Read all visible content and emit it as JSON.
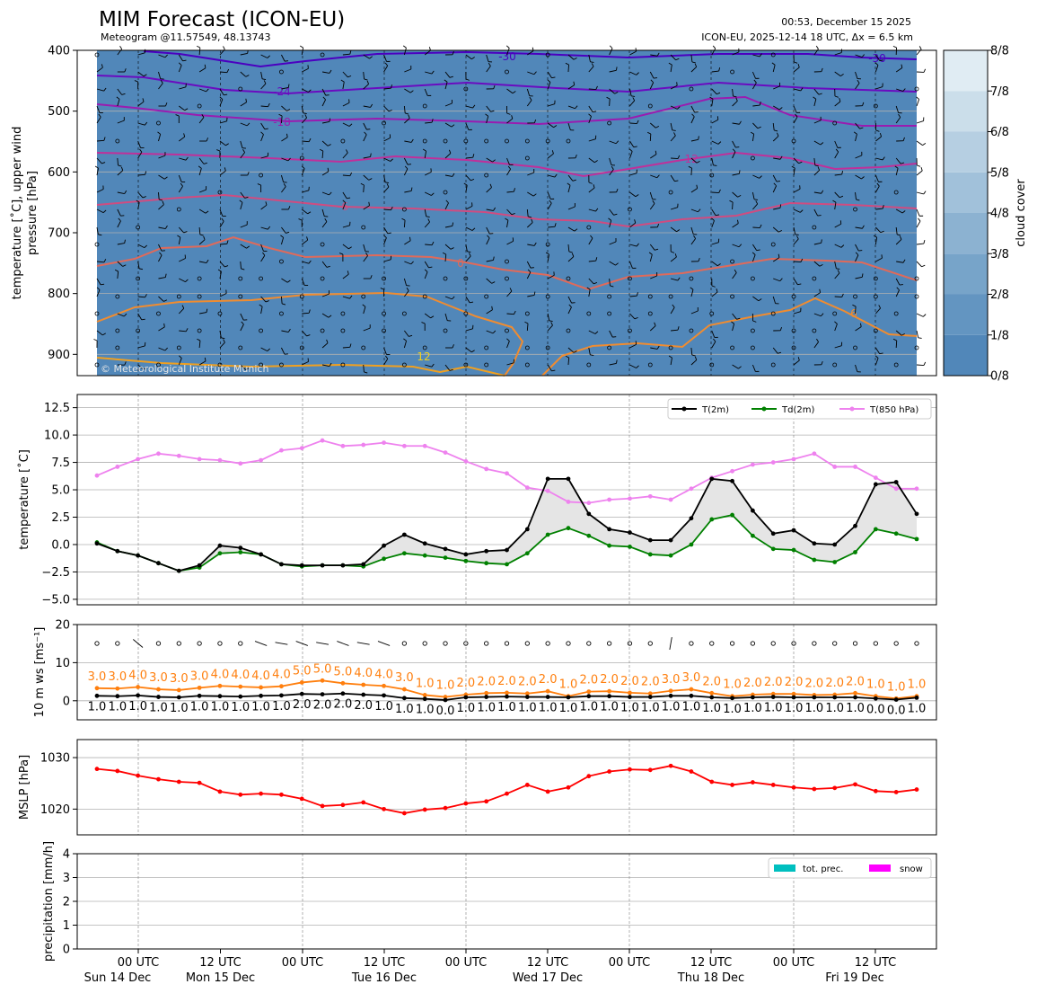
{
  "header": {
    "title": "MIM Forecast (ICON-EU)",
    "subtitle": "Meteogram @11.57549, 48.13743",
    "issued": "00:53, December 15 2025",
    "model_run": "ICON-EU, 2025-12-14 18 UTC, Δx = 6.5 km"
  },
  "copyright": "© Meteorological Institute Munich",
  "time_axis": {
    "ticks": [
      "00 UTC",
      "12 UTC",
      "00 UTC",
      "12 UTC",
      "00 UTC",
      "12 UTC",
      "00 UTC",
      "12 UTC",
      "00 UTC",
      "12 UTC"
    ],
    "days": [
      "Sun 14 Dec",
      "Mon 15 Dec",
      "Tue 16 Dec",
      "Wed 17 Dec",
      "Thu 18 Dec",
      "Fri 19 Dec"
    ]
  },
  "colors": {
    "cloud_fill": "#5187b9",
    "t2m": "#000000",
    "td2m": "#008000",
    "t850": "#ee82ee",
    "gust": "#ff7f0e",
    "mslp": "#ff0000",
    "prec": "#00bfbf",
    "snow": "#ff00ff"
  },
  "chart_data": [
    {
      "type": "contour",
      "id": "upper_air",
      "ylabel": "temperature [˚C], upper wind\npressure [hPa]",
      "yticks": [
        "400",
        "500",
        "600",
        "700",
        "800",
        "900"
      ],
      "ylim": [
        935,
        400
      ],
      "contour_labels": [
        "-30",
        "-30",
        "-24",
        "-18",
        "-12",
        "-6",
        "0",
        "6",
        "12"
      ],
      "colorbar": {
        "label": "cloud cover",
        "ticks": [
          "0/8",
          "1/8",
          "2/8",
          "3/8",
          "4/8",
          "5/8",
          "6/8",
          "7/8",
          "8/8"
        ]
      }
    },
    {
      "type": "line",
      "id": "temperature",
      "ylabel": "temperature [˚C]",
      "yticks": [
        "−5.0",
        "−2.5",
        "0.0",
        "2.5",
        "5.0",
        "7.5",
        "10.0",
        "12.5"
      ],
      "ylim": [
        -5.5,
        13.7
      ],
      "series": [
        {
          "name": "T(2m)",
          "values": [
            0.1,
            -0.6,
            -1.0,
            -1.7,
            -2.4,
            -1.9,
            -0.1,
            -0.3,
            -0.9,
            -1.8,
            -1.9,
            -1.9,
            -1.9,
            -1.8,
            -0.1,
            0.9,
            0.1,
            -0.4,
            -0.9,
            -0.6,
            -0.5,
            1.4,
            6.0,
            6.0,
            2.8,
            1.4,
            1.1,
            0.4,
            0.4,
            2.4,
            6.0,
            5.8,
            3.1,
            1.0,
            1.3,
            0.1,
            0.0,
            1.7,
            5.5,
            5.7,
            2.8
          ]
        },
        {
          "name": "Td(2m)",
          "values": [
            0.2,
            -0.6,
            -1.0,
            -1.7,
            -2.4,
            -2.1,
            -0.8,
            -0.7,
            -0.9,
            -1.8,
            -2.0,
            -1.9,
            -1.9,
            -2.0,
            -1.3,
            -0.8,
            -1.0,
            -1.2,
            -1.5,
            -1.7,
            -1.8,
            -0.8,
            0.9,
            1.5,
            0.8,
            -0.1,
            -0.2,
            -0.9,
            -1.0,
            0.0,
            2.3,
            2.7,
            0.8,
            -0.4,
            -0.5,
            -1.4,
            -1.6,
            -0.7,
            1.4,
            1.0,
            0.5
          ]
        },
        {
          "name": "T(850 hPa)",
          "values": [
            6.3,
            7.1,
            7.8,
            8.3,
            8.1,
            7.8,
            7.7,
            7.4,
            7.7,
            8.6,
            8.8,
            9.5,
            9.0,
            9.1,
            9.3,
            9.0,
            9.0,
            8.4,
            7.6,
            6.9,
            6.5,
            5.2,
            4.9,
            3.9,
            3.8,
            4.1,
            4.2,
            4.4,
            4.1,
            5.1,
            6.1,
            6.7,
            7.3,
            7.5,
            7.8,
            8.3,
            7.1,
            7.1,
            6.1,
            5.1,
            5.1
          ]
        }
      ]
    },
    {
      "type": "line",
      "id": "wind10m",
      "ylabel": "10 m ws [ms⁻¹]",
      "yticks": [
        "0",
        "10",
        "20"
      ],
      "ylim": [
        -5,
        20
      ],
      "series": [
        {
          "name": "gust",
          "values": [
            3.0,
            3.0,
            4.0,
            3.0,
            3.0,
            3.0,
            4.0,
            4.0,
            4.0,
            4.0,
            5.0,
            5.0,
            5.0,
            4.0,
            4.0,
            3.0,
            1.0,
            1.0,
            2.0,
            2.0,
            2.0,
            2.0,
            2.0,
            1.0,
            2.0,
            2.0,
            2.0,
            2.0,
            3.0,
            3.0,
            2.0,
            1.0,
            2.0,
            2.0,
            2.0,
            2.0,
            2.0,
            2.0,
            1.0,
            1.0,
            1.0
          ],
          "plot": [
            3.3,
            3.2,
            3.6,
            3.0,
            2.8,
            3.4,
            3.9,
            3.7,
            3.5,
            3.8,
            4.8,
            5.3,
            4.6,
            4.2,
            3.9,
            3.0,
            1.5,
            1.0,
            1.6,
            2.0,
            2.1,
            1.9,
            2.5,
            1.2,
            2.4,
            2.5,
            2.1,
            1.9,
            2.6,
            3.0,
            2.0,
            1.2,
            1.6,
            1.8,
            1.8,
            1.5,
            1.6,
            2.0,
            1.2,
            0.6,
            1.2
          ]
        },
        {
          "name": "mean",
          "values": [
            1.0,
            1.0,
            1.0,
            1.0,
            1.0,
            1.0,
            1.0,
            1.0,
            1.0,
            1.0,
            2.0,
            2.0,
            2.0,
            2.0,
            1.0,
            1.0,
            1.0,
            0.0,
            1.0,
            1.0,
            1.0,
            1.0,
            1.0,
            1.0,
            1.0,
            1.0,
            1.0,
            1.0,
            1.0,
            1.0,
            1.0,
            1.0,
            1.0,
            1.0,
            1.0,
            1.0,
            1.0,
            1.0,
            0.0,
            0.0,
            1.0
          ],
          "plot": [
            1.3,
            1.2,
            1.4,
            1.0,
            0.9,
            1.3,
            1.2,
            1.1,
            1.3,
            1.4,
            1.8,
            1.7,
            1.9,
            1.6,
            1.4,
            0.7,
            0.5,
            0.2,
            0.9,
            1.0,
            1.1,
            1.0,
            1.0,
            0.9,
            1.2,
            1.2,
            1.0,
            1.0,
            1.3,
            1.3,
            0.9,
            0.7,
            0.9,
            1.0,
            0.9,
            0.9,
            0.9,
            0.9,
            0.6,
            0.3,
            0.8
          ]
        }
      ]
    },
    {
      "type": "line",
      "id": "mslp",
      "ylabel": "MSLP [hPa]",
      "yticks": [
        "1020",
        "1030"
      ],
      "ylim": [
        1015.0,
        1033.5
      ],
      "series": [
        {
          "name": "MSLP",
          "values": [
            1027.8,
            1027.4,
            1026.5,
            1025.8,
            1025.3,
            1025.1,
            1023.4,
            1022.8,
            1023.0,
            1022.8,
            1022.0,
            1020.6,
            1020.8,
            1021.3,
            1020.0,
            1019.2,
            1019.9,
            1020.2,
            1021.1,
            1021.5,
            1023.0,
            1024.7,
            1023.4,
            1024.2,
            1026.4,
            1027.3,
            1027.7,
            1027.6,
            1028.4,
            1027.3,
            1025.3,
            1024.7,
            1025.2,
            1024.7,
            1024.2,
            1023.9,
            1024.1,
            1024.8,
            1023.5,
            1023.3,
            1023.8
          ]
        }
      ]
    },
    {
      "type": "bar",
      "id": "precipitation",
      "ylabel": "precipitation [mm/h]",
      "yticks": [
        "0",
        "1",
        "2",
        "3",
        "4"
      ],
      "ylim": [
        0,
        4
      ],
      "series": [
        {
          "name": "tot. prec.",
          "values": [
            0,
            0,
            0,
            0,
            0,
            0,
            0,
            0,
            0,
            0,
            0,
            0,
            0,
            0,
            0,
            0,
            0,
            0,
            0,
            0,
            0,
            0,
            0,
            0,
            0,
            0,
            0,
            0,
            0,
            0,
            0,
            0,
            0,
            0,
            0,
            0,
            0,
            0,
            0,
            0,
            0
          ]
        },
        {
          "name": "snow",
          "values": [
            0,
            0,
            0,
            0,
            0,
            0,
            0,
            0,
            0,
            0,
            0,
            0,
            0,
            0,
            0,
            0,
            0,
            0,
            0,
            0,
            0,
            0,
            0,
            0,
            0,
            0,
            0,
            0,
            0,
            0,
            0,
            0,
            0,
            0,
            0,
            0,
            0,
            0,
            0,
            0,
            0
          ]
        }
      ]
    }
  ]
}
